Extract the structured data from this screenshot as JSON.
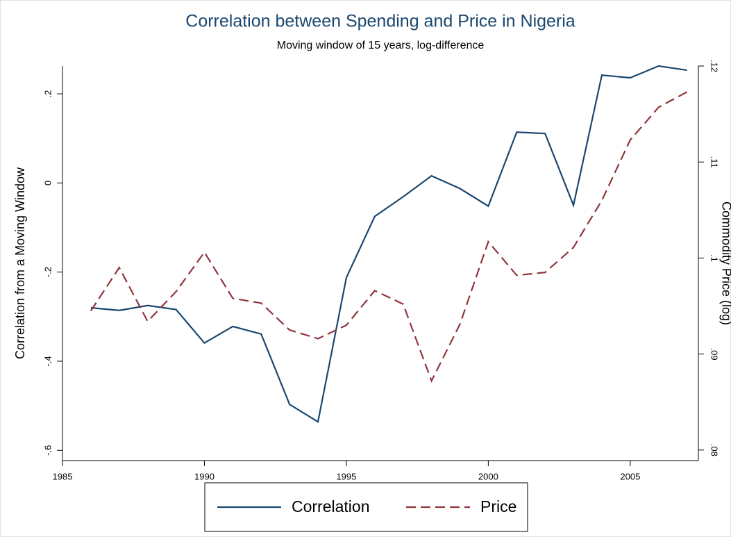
{
  "chart_data": {
    "type": "line",
    "title": "Correlation between Spending and Price in Nigeria",
    "subtitle": "Moving window of 15 years, log-difference",
    "y_label": "Correlation from a Moving Window",
    "y2_label": "Commodity Price (log)",
    "x": [
      1986,
      1987,
      1988,
      1989,
      1990,
      1991,
      1992,
      1993,
      1994,
      1995,
      1996,
      1997,
      1998,
      1999,
      2000,
      2001,
      2002,
      2003,
      2004,
      2005,
      2006,
      2007
    ],
    "series": [
      {
        "name": "Correlation",
        "color": "#1a476f",
        "dash": false,
        "values": [
          -0.28,
          -0.286,
          -0.275,
          -0.284,
          -0.359,
          -0.322,
          -0.339,
          -0.497,
          -0.536,
          -0.2125,
          -0.075,
          -0.031,
          0.016,
          -0.0125,
          -0.052,
          0.114,
          0.111,
          -0.05,
          0.242,
          0.236,
          0.2625,
          0.253
        ]
      },
      {
        "name": "Price",
        "color": "#90353b",
        "dash": true,
        "axis": "y2",
        "values": [
          0.0945,
          0.099,
          0.0934,
          0.0965,
          0.1006,
          0.0958,
          0.0953,
          0.0925,
          0.0916,
          0.093,
          0.0966,
          0.0952,
          0.0872,
          0.0931,
          0.1017,
          0.0982,
          0.0985,
          0.1011,
          0.106,
          0.1123,
          0.1157,
          0.1173
        ]
      }
    ],
    "xlim": [
      1985,
      2007.4
    ],
    "xticks": [
      1985,
      1990,
      1995,
      2000,
      2005
    ],
    "ylim": [
      -0.623,
      0.2625
    ],
    "yticks": [
      {
        "value": -0.6,
        "label": "-.6"
      },
      {
        "value": -0.4,
        "label": "-.4"
      },
      {
        "value": -0.2,
        "label": "-.2"
      },
      0,
      {
        "value": 0.2,
        "label": ".2"
      }
    ],
    "y2lim": [
      0.0789,
      0.12
    ],
    "y2ticks": [
      {
        "value": 0.08,
        "label": ".08"
      },
      {
        "value": 0.09,
        "label": ".09"
      },
      {
        "value": 0.1,
        "label": ".1"
      },
      {
        "value": 0.11,
        "label": ".11"
      },
      {
        "value": 0.12,
        "label": ".12"
      }
    ],
    "legend": "bottom"
  }
}
